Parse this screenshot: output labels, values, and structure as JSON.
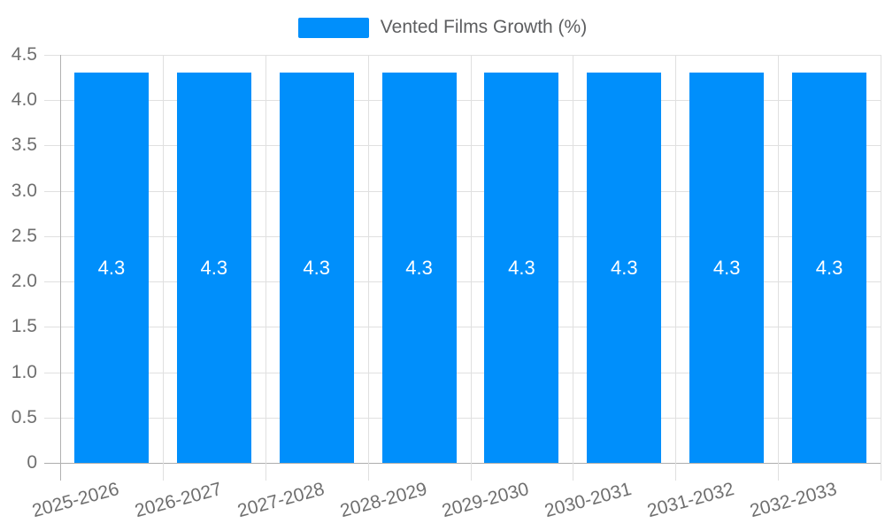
{
  "legend": {
    "label": "Vented Films Growth (%)",
    "swatch_color": "#008FFB"
  },
  "chart_data": {
    "type": "bar",
    "title": "",
    "legend_entries": [
      "Vented Films Growth (%)"
    ],
    "legend_position": "top",
    "categories": [
      "2025-2026",
      "2026-2027",
      "2027-2028",
      "2028-2029",
      "2029-2030",
      "2030-2031",
      "2031-2032",
      "2032-2033"
    ],
    "series": [
      {
        "name": "Vented Films Growth (%)",
        "values": [
          4.3,
          4.3,
          4.3,
          4.3,
          4.3,
          4.3,
          4.3,
          4.3
        ]
      }
    ],
    "data_labels": [
      "4.3",
      "4.3",
      "4.3",
      "4.3",
      "4.3",
      "4.3",
      "4.3",
      "4.3"
    ],
    "xlabel": "",
    "ylabel": "",
    "ylim": [
      0,
      4.5
    ],
    "yticks": [
      0,
      0.5,
      1.0,
      1.5,
      2.0,
      2.5,
      3.0,
      3.5,
      4.0,
      4.5
    ],
    "ytick_labels": [
      "0",
      "0.5",
      "1.0",
      "1.5",
      "2.0",
      "2.5",
      "3.0",
      "3.5",
      "4.0",
      "4.5"
    ],
    "grid": "on",
    "bar_color": "#008FFB",
    "data_label_color": "#ffffff",
    "axis_text_color": "#6f6f6f"
  }
}
